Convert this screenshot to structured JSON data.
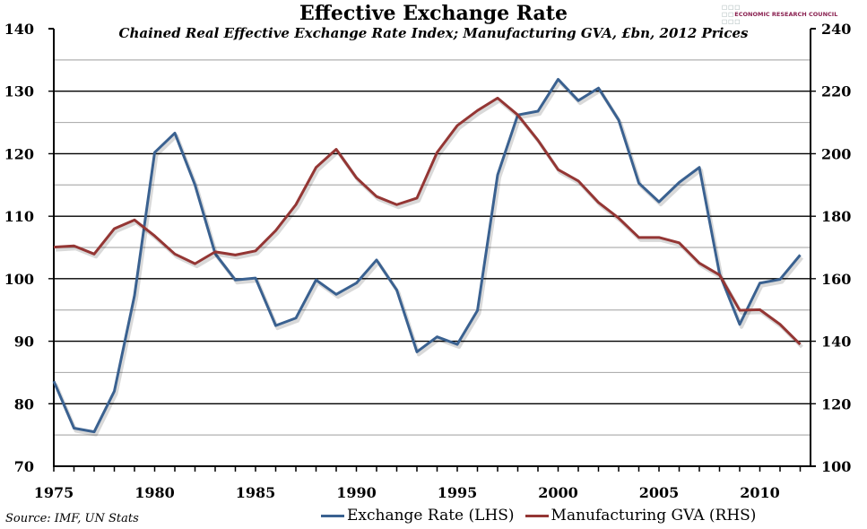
{
  "chart_data": {
    "type": "line",
    "title": "Effective Exchange Rate",
    "subtitle": "Chained Real Effective Exchange Rate Index; Manufacturing GVA, £bn, 2012 Prices",
    "source": "Source: IMF, UN Stats",
    "logo_text": "ECONOMIC RESEARCH COUNCIL",
    "x": [
      1975,
      1976,
      1977,
      1978,
      1979,
      1980,
      1981,
      1982,
      1983,
      1984,
      1985,
      1986,
      1987,
      1988,
      1989,
      1990,
      1991,
      1992,
      1993,
      1994,
      1995,
      1996,
      1997,
      1998,
      1999,
      2000,
      2001,
      2002,
      2003,
      2004,
      2005,
      2006,
      2007,
      2008,
      2009,
      2010,
      2011,
      2012
    ],
    "x_ticks": [
      "1975",
      "1980",
      "1985",
      "1990",
      "1995",
      "2000",
      "2005",
      "2010"
    ],
    "xlim": [
      1975,
      2013
    ],
    "y_left": {
      "lim": [
        70,
        140
      ],
      "ticks": [
        "70",
        "80",
        "90",
        "100",
        "110",
        "120",
        "130",
        "140"
      ]
    },
    "y_right": {
      "lim": [
        100,
        240
      ],
      "ticks": [
        "100",
        "120",
        "140",
        "160",
        "180",
        "200",
        "220",
        "240"
      ]
    },
    "grid": true,
    "legend_position": "bottom",
    "series": [
      {
        "name": "Exchange Rate (LHS)",
        "axis": "left",
        "color": "#3a6190",
        "values": [
          83.6,
          76.1,
          75.5,
          82.0,
          97.3,
          120.2,
          123.3,
          115.0,
          104.0,
          99.8,
          100.1,
          92.5,
          93.7,
          99.8,
          97.5,
          99.3,
          103.0,
          98.2,
          88.3,
          90.7,
          89.5,
          94.9,
          116.6,
          126.2,
          126.8,
          131.9,
          128.5,
          130.5,
          125.4,
          115.3,
          112.3,
          115.4,
          117.8,
          100.8,
          92.7,
          99.3,
          99.9,
          103.8
        ]
      },
      {
        "name": "Manufacturing GVA (RHS)",
        "axis": "right",
        "color": "#943634",
        "values": [
          170.1,
          170.5,
          167.9,
          176.0,
          178.8,
          173.7,
          167.9,
          164.8,
          168.6,
          167.6,
          168.9,
          175.4,
          183.7,
          195.6,
          201.4,
          192.3,
          186.3,
          183.7,
          185.8,
          200.4,
          209.0,
          213.8,
          217.8,
          212.4,
          204.3,
          194.9,
          191.3,
          184.4,
          179.4,
          173.2,
          173.2,
          171.5,
          165.0,
          161.2,
          149.9,
          150.1,
          145.4,
          139.0
        ]
      }
    ]
  }
}
